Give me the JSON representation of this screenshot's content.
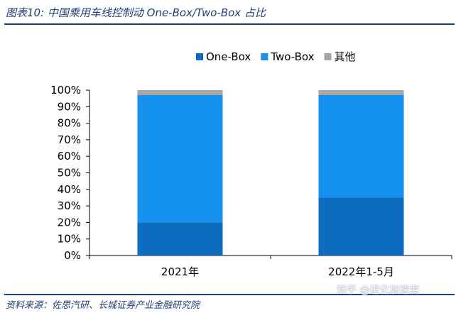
{
  "title": "图表10:  中国乘用车线控制动 One-Box/Two-Box 占比",
  "source": "资料来源：佐思汽研、长城证券产业金融研究院",
  "watermark": "知乎 @进化加速度",
  "chart_data": {
    "type": "bar",
    "stacked": true,
    "categories": [
      "2021年",
      "2022年1-5月"
    ],
    "series": [
      {
        "name": "One-Box",
        "color": "#0d6cbe",
        "values": [
          20,
          35
        ]
      },
      {
        "name": "Two-Box",
        "color": "#1591ef",
        "values": [
          77,
          62
        ]
      },
      {
        "name": "其他",
        "color": "#a6a6a6",
        "values": [
          3,
          3
        ]
      }
    ],
    "y_ticks": [
      "0%",
      "10%",
      "20%",
      "30%",
      "40%",
      "50%",
      "60%",
      "70%",
      "80%",
      "90%",
      "100%"
    ],
    "ylim": [
      0,
      100
    ],
    "grid": false,
    "legend_position": "top-right"
  }
}
